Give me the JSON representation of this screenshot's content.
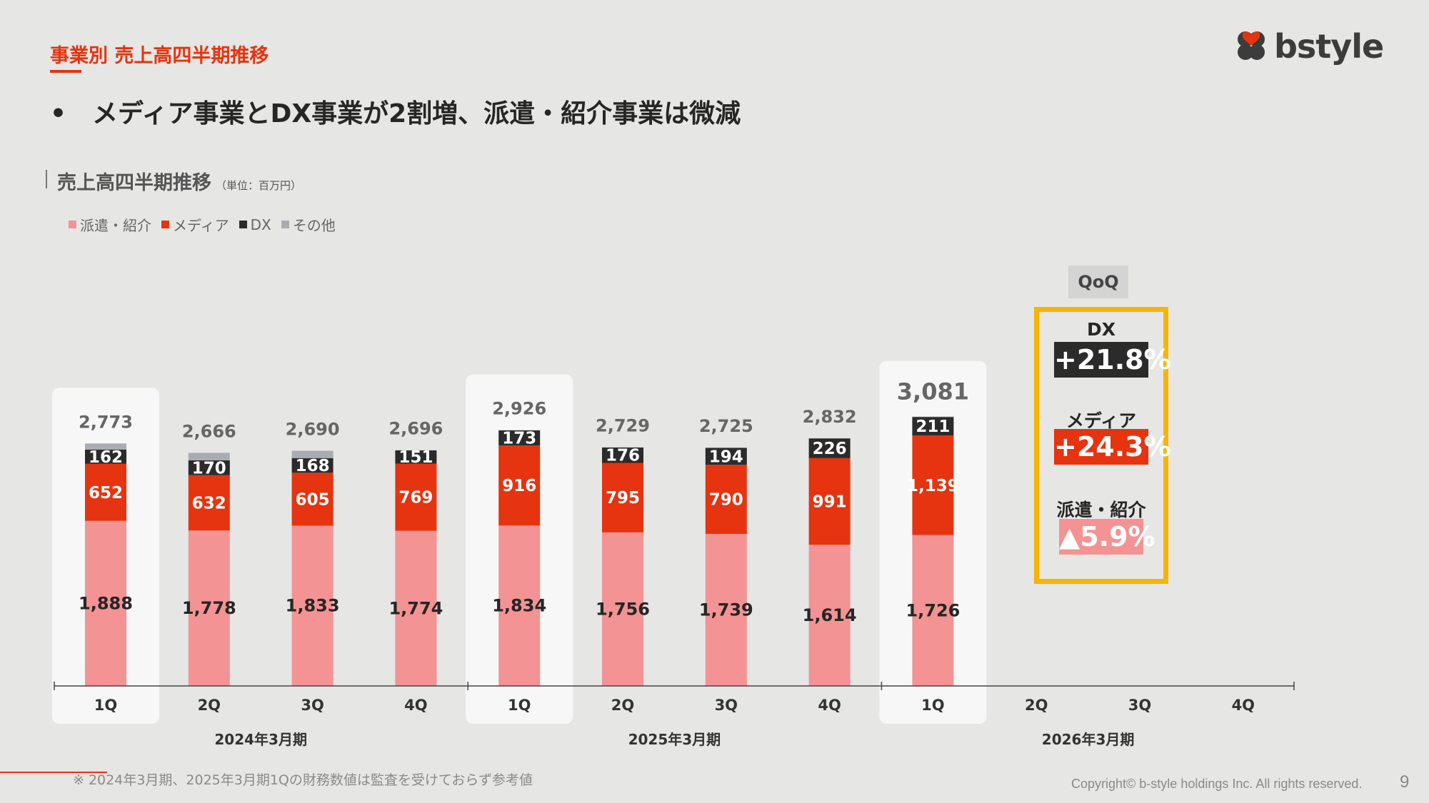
{
  "header": {
    "section_title": "事業別 売上高四半期推移",
    "headline": "•　メディア事業とDX事業が2割増、派遣・紹介事業は微減",
    "logo_text": "bstyle"
  },
  "chart_data": {
    "type": "bar",
    "stacked": true,
    "title": "売上高四半期推移",
    "unit": "（単位：百万円）",
    "legend_placement": "top-left",
    "categories": [
      "1Q",
      "2Q",
      "3Q",
      "4Q",
      "1Q",
      "2Q",
      "3Q",
      "4Q",
      "1Q",
      "2Q",
      "3Q",
      "4Q"
    ],
    "groups": [
      {
        "label": "2024年3月期",
        "categories": [
          "1Q",
          "2Q",
          "3Q",
          "4Q"
        ]
      },
      {
        "label": "2025年3月期",
        "categories": [
          "1Q",
          "2Q",
          "3Q",
          "4Q"
        ]
      },
      {
        "label": "2026年3月期",
        "categories": [
          "1Q",
          "2Q",
          "3Q",
          "4Q"
        ]
      }
    ],
    "series": [
      {
        "name": "派遣・紹介",
        "color": "#f39393",
        "values": [
          1888,
          1778,
          1833,
          1774,
          1834,
          1756,
          1739,
          1614,
          1726,
          null,
          null,
          null
        ]
      },
      {
        "name": "メディア",
        "color": "#e5340f",
        "values": [
          652,
          632,
          605,
          769,
          916,
          795,
          790,
          991,
          1139,
          null,
          null,
          null
        ]
      },
      {
        "name": "DX",
        "color": "#2b2b2b",
        "values": [
          162,
          170,
          168,
          151,
          173,
          176,
          194,
          226,
          211,
          null,
          null,
          null
        ]
      },
      {
        "name": "その他",
        "color": "#a9adb3",
        "values": [
          71,
          86,
          84,
          2,
          3,
          2,
          2,
          1,
          5,
          null,
          null,
          null
        ]
      }
    ],
    "totals": [
      "2,773",
      "2,666",
      "2,690",
      "2,696",
      "2,926",
      "2,729",
      "2,725",
      "2,832",
      "3,081",
      null,
      null,
      null
    ],
    "highlighted_categories": [
      0,
      4,
      8
    ],
    "ylim": [
      0,
      3300
    ],
    "grid": false
  },
  "qoq": {
    "tag": "QoQ",
    "items": [
      {
        "label": "DX",
        "value": "+21.8%",
        "color": "#2b2b2b"
      },
      {
        "label": "メディア",
        "value": "+24.3%",
        "color": "#e5340f"
      },
      {
        "label": "派遣・紹介",
        "value": "▲5.9%",
        "color": "#f39393"
      }
    ],
    "border_color": "#f7b500"
  },
  "footer": {
    "footnote": "※ 2024年3月期、2025年3月期1Qの財務数値は監査を受けておらず参考値",
    "copyright": "Copyright© b-style holdings Inc. All rights reserved.",
    "page_number": "9"
  }
}
